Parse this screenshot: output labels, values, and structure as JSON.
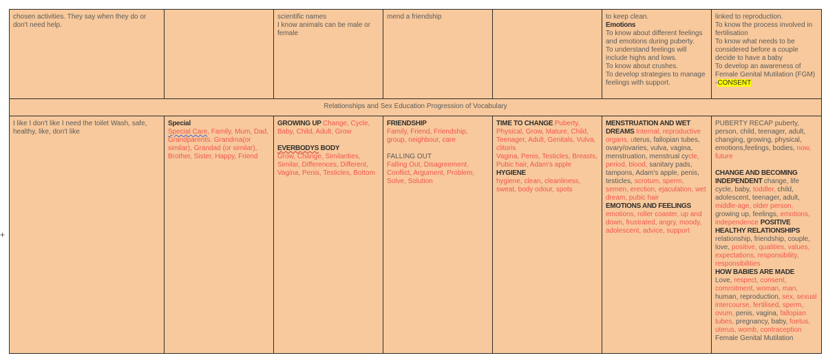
{
  "table": {
    "row1": [
      [
        {
          "t": "chosen activities. They say when they do or don't need help.",
          "c": "gray"
        }
      ],
      [],
      [
        {
          "t": "scientific names\nI know animals can be male or female",
          "c": "gray"
        }
      ],
      [
        {
          "t": "mend a friendship",
          "c": "gray"
        }
      ],
      [],
      [
        {
          "t": "to keep clean.\n",
          "c": "gray"
        },
        {
          "t": "Emotions\n",
          "c": "bold"
        },
        {
          "t": "To know about different feelings and emotions during puberty.\nTo understand feelings will include highs and lows.\nTo know about crushes.\nTo develop strategies to manage feelings with support.",
          "c": "gray"
        }
      ],
      [
        {
          "t": "linked to reproduction.\nTo know the process involved in fertilisation\nTo know what needs to be considered before a couple decide to have a baby\nTo develop an awareness of Female Genital Mutilation (FGM) -",
          "c": "gray"
        },
        {
          "t": "CONSENT",
          "c": "hl"
        }
      ]
    ],
    "section_title": "Relationships and Sex Education Progression of Vocabulary",
    "row3": [
      [
        {
          "t": "I like I don't like I need the toilet Wash, safe, healthy, like, don't like",
          "c": "gray"
        }
      ],
      [
        {
          "t": "Special\n",
          "c": "bold"
        },
        {
          "t": "Special Care",
          "c": "red ulb"
        },
        {
          "t": ", Family, Mum, Dad, Grandparents. Grandma(or similar), Grandad (or similar), Brother, Sister, Happy, Friend",
          "c": "red"
        }
      ],
      [
        {
          "t": "GROWING UP ",
          "c": "bold"
        },
        {
          "t": "Change, Cycle, Baby, Child, Adult, Grow\n\n",
          "c": "red"
        },
        {
          "t": "EVERBODYS",
          "c": "bold ul"
        },
        {
          "t": " BODY\n",
          "c": "bold"
        },
        {
          "t": "Grow, Change, Similarities, Similar, Differences, Different, Vagina, Penis, Testicles, Bottom",
          "c": "red"
        }
      ],
      [
        {
          "t": "FRIENDSHIP\n",
          "c": "bold"
        },
        {
          "t": "Family, Friend, Friendship, group, neighbour, care\n\n",
          "c": "red"
        },
        {
          "t": "FALLING OUT\n",
          "c": "gray"
        },
        {
          "t": "Falling Out, Disagreement. Conflict, Argument, Problem, Solve, Solution",
          "c": "red"
        }
      ],
      [
        {
          "t": "TIME TO CHANGE ",
          "c": "bold"
        },
        {
          "t": "Puberty, Physical, Grow, Mature, Child, Teenager, Adult, Genitals, Vulva, clitoris\nVagina, Penis, Testicles, Breasts, Pubic hair, Adam's apple\n",
          "c": "red"
        },
        {
          "t": "HYGIENE\n",
          "c": "bold"
        },
        {
          "t": "hygiene, clean, cleanliness, sweat, body odour, spots",
          "c": "red"
        }
      ],
      [
        {
          "t": "MENSTRUATION AND WET DREAMS ",
          "c": "bold"
        },
        {
          "t": "Internal, reproductive organs, u",
          "c": "red"
        },
        {
          "t": "terus, fallopian tubes, ovary/ovaries, vulva, vagina, menstruation, menstrual cy",
          "c": "gray"
        },
        {
          "t": "cle, period, blood,",
          "c": "red"
        },
        {
          "t": " sanitary pads, tampons, Adam's apple, penis, testicles, ",
          "c": "gray"
        },
        {
          "t": "scrotum, sperm, semen, erection, ejaculation, wet dream, pubic hair\n",
          "c": "red"
        },
        {
          "t": "EMOTIONS AND FEELINGS\n",
          "c": "bold"
        },
        {
          "t": "emotions, roller coaster, up and down, frustrated, angry, moody, adolescent, advice, support",
          "c": "red"
        }
      ],
      [
        {
          "t": "PUBERTY RECAP puberty, person, child, teenager, adult, changing, growing, physical, emotions,feelings, bodies, ",
          "c": "gray"
        },
        {
          "t": "now, future\n\n",
          "c": "red"
        },
        {
          "t": "CHANGE AND BECOMING INDEPENDENT ",
          "c": "bold"
        },
        {
          "t": "change, life cycle, baby, ",
          "c": "gray"
        },
        {
          "t": "toddler,",
          "c": "red"
        },
        {
          "t": " child, adolescent, teenager, adult, ",
          "c": "gray"
        },
        {
          "t": "middle-age, older person,",
          "c": "red"
        },
        {
          "t": " growing up, feelings, ",
          "c": "gray"
        },
        {
          "t": "emotions, independence ",
          "c": "red"
        },
        {
          "t": "POSITIVE HEALTHY RELATIONSHIPS\n",
          "c": "bold"
        },
        {
          "t": "relationship, friendship, couple, love, ",
          "c": "gray"
        },
        {
          "t": "positive, qualities, values, expectations, responsibility, responsibilities\n",
          "c": "red"
        },
        {
          "t": "HOW BABIES ARE MADE\n",
          "c": "bold"
        },
        {
          "t": "Love, ",
          "c": "gray"
        },
        {
          "t": "respect, consent, commitment, woman, man,",
          "c": "red"
        },
        {
          "t": " human, reproduction, ",
          "c": "gray"
        },
        {
          "t": "sex, sexual intercourse, fertilised, sperm, ovum,",
          "c": "red"
        },
        {
          "t": " penis, vagina, ",
          "c": "gray"
        },
        {
          "t": "fallopian tubes,",
          "c": "red"
        },
        {
          "t": " pregnancy, baby, ",
          "c": "gray"
        },
        {
          "t": "foetus, uterus, womb, contraception\n",
          "c": "red"
        },
        {
          "t": "Female Genital Mutilation",
          "c": "gray"
        }
      ]
    ]
  },
  "cursor_icon": "crosshair-cursor-icon",
  "colors": {
    "cell_bg": "#f8c99c",
    "red_text": "#f2554d",
    "gray_text": "#5a5a5a",
    "highlight": "#ffff00"
  }
}
